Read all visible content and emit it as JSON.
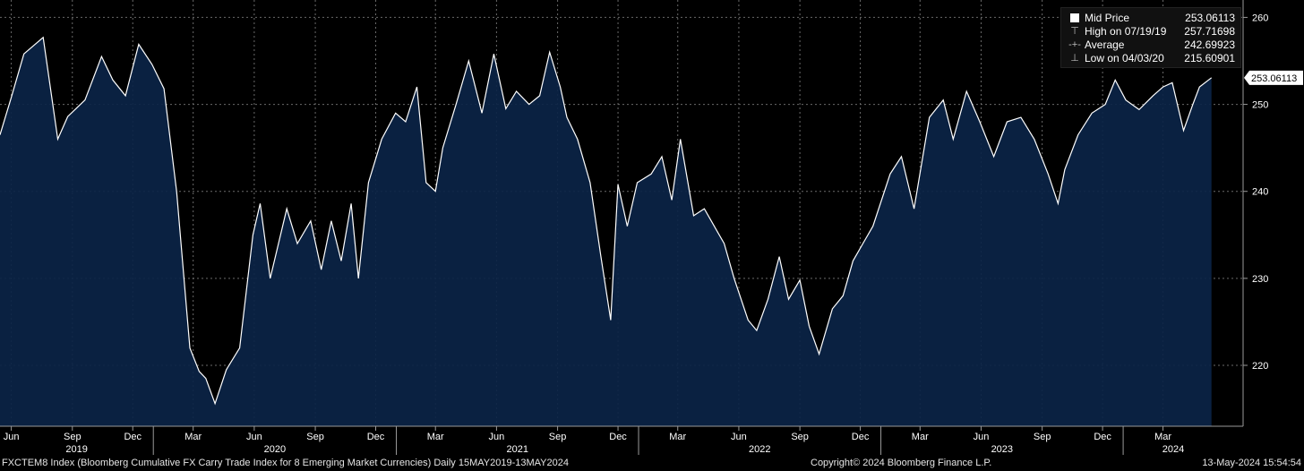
{
  "chart_data": {
    "type": "area",
    "ticker_footer": "FXCTEM8 Index (Bloomberg Cumulative FX Carry Trade Index for 8 Emerging Market Currencies)  Daily 15MAY2019-13MAY2024",
    "copyright": "Copyright© 2024 Bloomberg Finance L.P.",
    "timestamp": "13-May-2024 15:54:54",
    "ylim": [
      213,
      262
    ],
    "y_ticks": [
      220,
      230,
      240,
      250,
      260
    ],
    "month_ticks": [
      "Jun",
      "Sep",
      "Dec",
      "Mar",
      "Jun",
      "Sep",
      "Dec",
      "Mar",
      "Jun",
      "Sep",
      "Dec",
      "Mar",
      "Jun",
      "Sep",
      "Dec",
      "Mar",
      "Jun",
      "Sep",
      "Dec",
      "Mar"
    ],
    "year_ticks": [
      "2019",
      "2020",
      "2021",
      "2022",
      "2023",
      "2024"
    ],
    "last_value_label": "253.06113",
    "legend": [
      {
        "symbol": "square",
        "label": "Mid Price",
        "value": "253.06113"
      },
      {
        "symbol": "high",
        "label": "High on 07/19/19",
        "value": "257.71698"
      },
      {
        "symbol": "avg",
        "label": "Average",
        "value": "242.69923"
      },
      {
        "symbol": "low",
        "label": "Low on 04/03/20",
        "value": "215.60901"
      }
    ],
    "series": [
      {
        "x": [
          "2019-05-15",
          "2019-06-01",
          "2019-06-20",
          "2019-07-19",
          "2019-08-10",
          "2019-08-25",
          "2019-09-20",
          "2019-10-15",
          "2019-11-01",
          "2019-11-20",
          "2019-12-10",
          "2019-12-30",
          "2020-01-17",
          "2020-02-05",
          "2020-02-25",
          "2020-03-10",
          "2020-03-20",
          "2020-04-03",
          "2020-04-20",
          "2020-05-10",
          "2020-05-30",
          "2020-06-10",
          "2020-06-25",
          "2020-07-20",
          "2020-08-05",
          "2020-08-25",
          "2020-09-10",
          "2020-09-25",
          "2020-10-10",
          "2020-10-25",
          "2020-11-05",
          "2020-11-20",
          "2020-12-10",
          "2020-12-31",
          "2021-01-15",
          "2021-02-01",
          "2021-02-15",
          "2021-03-01",
          "2021-03-12",
          "2021-04-01",
          "2021-04-20",
          "2021-05-10",
          "2021-05-28",
          "2021-06-15",
          "2021-07-01",
          "2021-07-20",
          "2021-08-05",
          "2021-08-20",
          "2021-09-05",
          "2021-09-15",
          "2021-10-01",
          "2021-10-20",
          "2021-11-05",
          "2021-11-20",
          "2021-12-01",
          "2021-12-15",
          "2021-12-30",
          "2022-01-20",
          "2022-02-05",
          "2022-02-20",
          "2022-03-05",
          "2022-03-25",
          "2022-04-10",
          "2022-04-25",
          "2022-05-10",
          "2022-05-25",
          "2022-06-15",
          "2022-06-28",
          "2022-07-15",
          "2022-08-01",
          "2022-08-15",
          "2022-09-01",
          "2022-09-15",
          "2022-09-30",
          "2022-10-20",
          "2022-11-05",
          "2022-11-20",
          "2022-12-05",
          "2022-12-20",
          "2023-01-15",
          "2023-02-01",
          "2023-02-20",
          "2023-03-15",
          "2023-04-05",
          "2023-04-20",
          "2023-05-10",
          "2023-05-30",
          "2023-06-20",
          "2023-07-10",
          "2023-07-31",
          "2023-08-20",
          "2023-09-10",
          "2023-09-25",
          "2023-10-05",
          "2023-10-25",
          "2023-11-15",
          "2023-12-05",
          "2023-12-20",
          "2024-01-05",
          "2024-01-25",
          "2024-02-15",
          "2024-03-01",
          "2024-03-15",
          "2024-04-01",
          "2024-04-15",
          "2024-04-25",
          "2024-05-13"
        ],
        "values": [
          246.5,
          250.8,
          255.8,
          257.7,
          246.0,
          248.6,
          250.5,
          255.5,
          252.8,
          251.0,
          256.9,
          254.6,
          251.8,
          240.0,
          222.0,
          219.3,
          218.5,
          215.6,
          219.5,
          222.0,
          235.0,
          238.6,
          230.0,
          238.0,
          234.0,
          236.6,
          231.0,
          236.6,
          232.0,
          238.6,
          230.0,
          241.0,
          246.0,
          249.0,
          248.0,
          252.0,
          241.0,
          240.0,
          245.0,
          250.0,
          255.0,
          249.0,
          255.8,
          249.5,
          251.5,
          250.0,
          251.0,
          256.0,
          252.0,
          248.5,
          246.0,
          241.0,
          232.6,
          225.2,
          240.8,
          236.0,
          241.0,
          242.0,
          244.0,
          239.0,
          246.0,
          237.2,
          238.0,
          236.0,
          234.0,
          230.0,
          225.2,
          224.0,
          227.6,
          232.5,
          227.6,
          229.8,
          224.5,
          221.3,
          226.5,
          228.0,
          232.0,
          234.0,
          236.0,
          242.0,
          244.0,
          238.0,
          248.5,
          250.5,
          246.0,
          251.5,
          248.0,
          244.0,
          248.0,
          248.5,
          246.0,
          242.0,
          238.6,
          242.5,
          246.5,
          249.0,
          250.0,
          252.8,
          250.5,
          249.4,
          251.0,
          252.0,
          252.5,
          247.0,
          250.0,
          252.0,
          253.06
        ]
      }
    ]
  }
}
